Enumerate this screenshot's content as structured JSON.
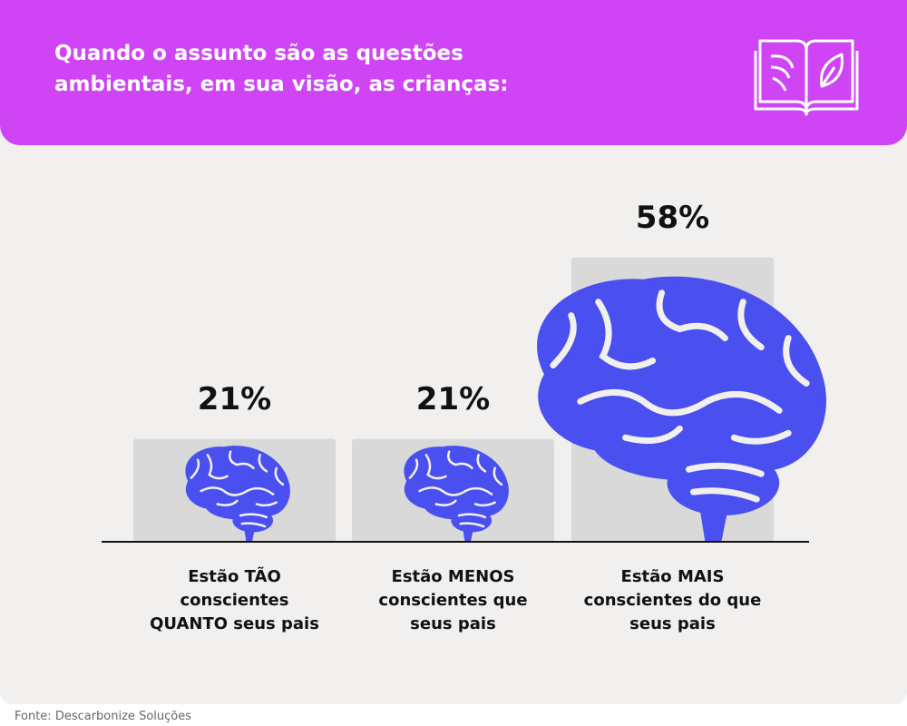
{
  "chart_data": {
    "type": "bar",
    "title": "Quando o assunto são as questões ambientais, em sua visão, as crianças:",
    "categories": [
      "Estão TÃO conscientes QUANTO seus pais",
      "Estão MENOS conscientes que seus pais",
      "Estão MAIS conscientes do que seus pais"
    ],
    "values": [
      21,
      21,
      58
    ],
    "value_labels": [
      "21%",
      "21%",
      "58%"
    ],
    "color": "#d9d9d9",
    "icon_color": "#4a4ff0",
    "source": "Fonte: Descarbonize Soluções"
  }
}
